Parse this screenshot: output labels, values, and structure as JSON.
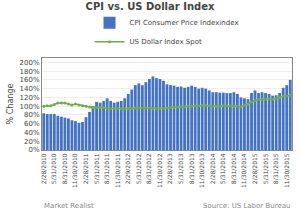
{
  "chart_data": {
    "type": "bar",
    "title": "CPI vs. US Dollar Index",
    "ylabel": "% Change",
    "annotations": [
      "Market Realist",
      "Source: US Labor Bureau"
    ],
    "categories": [
      "2/28/2010",
      null,
      null,
      "5/31/2010",
      null,
      null,
      "8/31/2010",
      null,
      null,
      "11/30/2010",
      null,
      null,
      "2/28/2011",
      null,
      null,
      "5/31/2011",
      null,
      null,
      "8/31/2011",
      null,
      null,
      "11/30/2011",
      null,
      null,
      "2/29/2012",
      null,
      null,
      "5/31/2012",
      null,
      null,
      "8/31/2012",
      null,
      null,
      "11/30/2012",
      null,
      null,
      "2/28/2013",
      null,
      null,
      "5/31/2013",
      null,
      null,
      "8/31/2013",
      null,
      null,
      "11/30/2013",
      null,
      null,
      "2/28/2014",
      null,
      null,
      "5/31/2014",
      null,
      null,
      "8/31/2014",
      null,
      null,
      "11/30/2014",
      null,
      null,
      "2/28/2015",
      null,
      null,
      "5/31/2015",
      null,
      null,
      "8/31/2015",
      null,
      null,
      "11/30/2015",
      null
    ],
    "series": [
      {
        "name": "CPI Consumer Price Indexindex",
        "type": "bar",
        "color": "#4472C4",
        "values": [
          84,
          82,
          82,
          82,
          78,
          76,
          74,
          72,
          68,
          66,
          62,
          64,
          75,
          87,
          100,
          110,
          108,
          112,
          118,
          112,
          108,
          110,
          112,
          118,
          128,
          138,
          148,
          152,
          148,
          155,
          162,
          168,
          164,
          162,
          158,
          150,
          148,
          147,
          144,
          145,
          142,
          144,
          147,
          144,
          140,
          142,
          140,
          136,
          132,
          132,
          131,
          131,
          130,
          130,
          132,
          128,
          120,
          118,
          116,
          130,
          136,
          130,
          132,
          130,
          128,
          124,
          125,
          130,
          142,
          148,
          160
        ]
      },
      {
        "name": "US Dollar Index Spot",
        "type": "line",
        "color": "#70AD47",
        "marker": "circle",
        "values": [
          100,
          101,
          101,
          104,
          107,
          107,
          107,
          105,
          103,
          105,
          103,
          101,
          100,
          98,
          97,
          97,
          97,
          97,
          95,
          94,
          94,
          94,
          95,
          95,
          95,
          95,
          96,
          96,
          96,
          96,
          96,
          95,
          95,
          95,
          95,
          96,
          97,
          97,
          98,
          99,
          99,
          100,
          100,
          101,
          101,
          101,
          101,
          101,
          100,
          100,
          100,
          101,
          101,
          101,
          100,
          100,
          99,
          102,
          105,
          110,
          113,
          115,
          115,
          115,
          116,
          116,
          117,
          120,
          122,
          123,
          125
        ]
      }
    ],
    "ylim": [
      0,
      210
    ],
    "yticks": [
      {
        "value": 0,
        "label": "0%"
      },
      {
        "value": 20,
        "label": "20%"
      },
      {
        "value": 40,
        "label": "40%"
      },
      {
        "value": 60,
        "label": "60%"
      },
      {
        "value": 80,
        "label": "80%"
      },
      {
        "value": 100,
        "label": "100%"
      },
      {
        "value": 120,
        "label": "120%"
      },
      {
        "value": 140,
        "label": "140%"
      },
      {
        "value": 160,
        "label": "160%"
      },
      {
        "value": 180,
        "label": "180%"
      },
      {
        "value": 200,
        "label": "200%"
      }
    ],
    "grid": true,
    "legend": "top"
  }
}
